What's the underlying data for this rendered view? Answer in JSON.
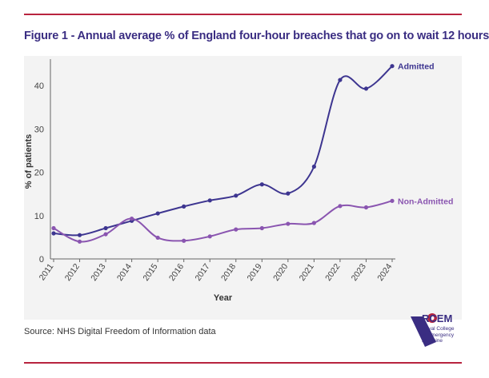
{
  "title": "Figure 1 - Annual average % of England four-hour breaches that go on to wait 12 hours",
  "source": "Source: NHS Digital Freedom of Information data",
  "logo": {
    "name": "RCEM",
    "subtitle_lines": [
      "Royal College",
      "of Emergency",
      "Medicine"
    ]
  },
  "colors": {
    "rule": "#b8243f",
    "admitted": "#3d3590",
    "non_admitted": "#8a55b0"
  },
  "chart_data": {
    "type": "line",
    "xlabel": "Year",
    "ylabel": "% of patients",
    "ylim": [
      0,
      45
    ],
    "yticks": [
      0,
      10,
      20,
      30,
      40
    ],
    "x": [
      "2011",
      "2012",
      "2013",
      "2014",
      "2015",
      "2016",
      "2017",
      "2018",
      "2019",
      "2020",
      "2021",
      "2022",
      "2023",
      "2024"
    ],
    "grid": false,
    "legend": "end-of-line labels",
    "series": [
      {
        "name": "Admitted",
        "color": "#3d3590",
        "values": [
          5.9,
          5.5,
          7.1,
          8.8,
          10.5,
          12.1,
          13.5,
          14.6,
          17.2,
          15.1,
          21.3,
          41.3,
          39.3,
          44.5
        ]
      },
      {
        "name": "Non-Admitted",
        "color": "#8a55b0",
        "values": [
          7.1,
          4.0,
          5.7,
          9.3,
          4.9,
          4.2,
          5.2,
          6.8,
          7.1,
          8.1,
          8.3,
          12.2,
          11.9,
          13.4
        ]
      }
    ]
  }
}
